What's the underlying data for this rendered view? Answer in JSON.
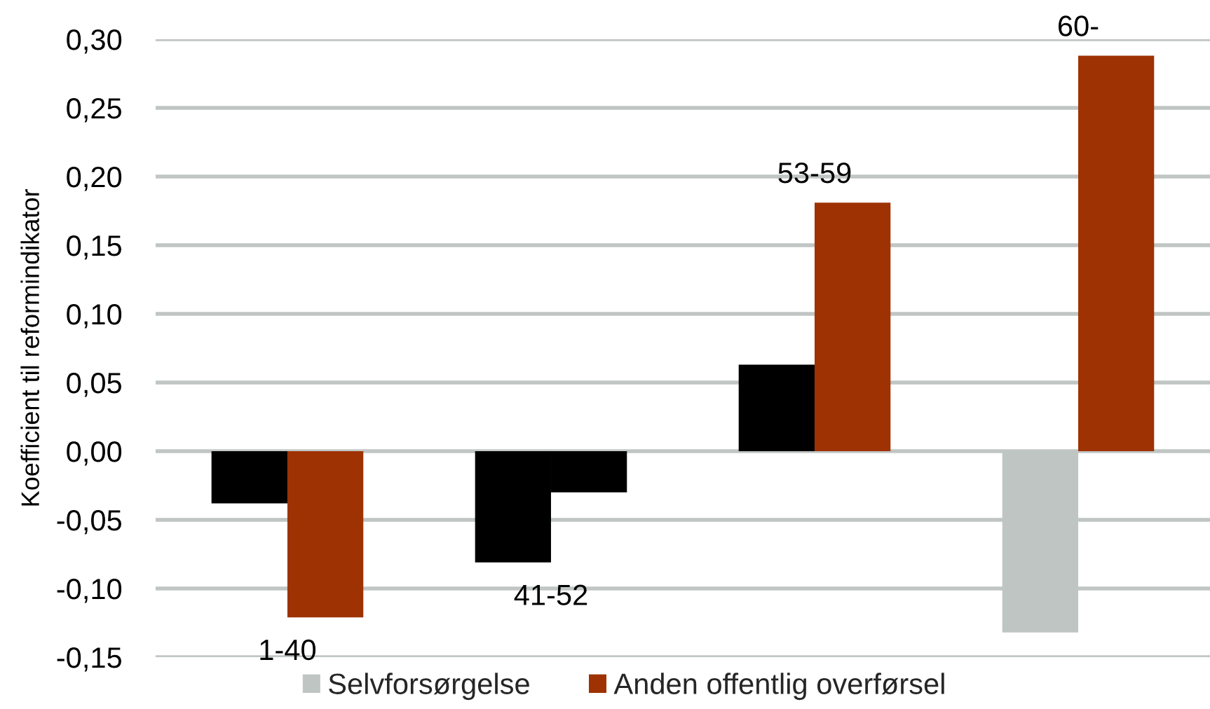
{
  "chart_data": {
    "type": "bar",
    "ylabel": "Koefficient til reformindikator",
    "categories": [
      "1-40",
      "41-52",
      "53-59",
      "60-"
    ],
    "series": [
      {
        "name": "Selvforsørgelse",
        "color": "#bfc5c3",
        "colors": [
          "#000000",
          "#000000",
          "#000000",
          "#bfc5c3"
        ],
        "values": [
          -0.038,
          -0.081,
          0.063,
          -0.132
        ]
      },
      {
        "name": "Anden offentlig overførsel",
        "color": "#9e3203",
        "colors": [
          "#9e3203",
          "#000000",
          "#9e3203",
          "#9e3203"
        ],
        "values": [
          -0.121,
          -0.03,
          0.181,
          0.288
        ]
      }
    ],
    "ylim": [
      -0.15,
      0.3
    ],
    "yticks": [
      {
        "value": -0.15,
        "label": "-0,15"
      },
      {
        "value": -0.1,
        "label": "-0,10"
      },
      {
        "value": -0.05,
        "label": "-0,05"
      },
      {
        "value": 0,
        "label": "0,00"
      },
      {
        "value": 0.05,
        "label": "0,05"
      },
      {
        "value": 0.1,
        "label": "0,10"
      },
      {
        "value": 0.15,
        "label": "0,15"
      },
      {
        "value": 0.2,
        "label": "0,20"
      },
      {
        "value": 0.25,
        "label": "0,25"
      },
      {
        "value": 0.3,
        "label": "0,30"
      }
    ],
    "grid": "y",
    "legend": "bottom",
    "tick_labels": "y"
  }
}
